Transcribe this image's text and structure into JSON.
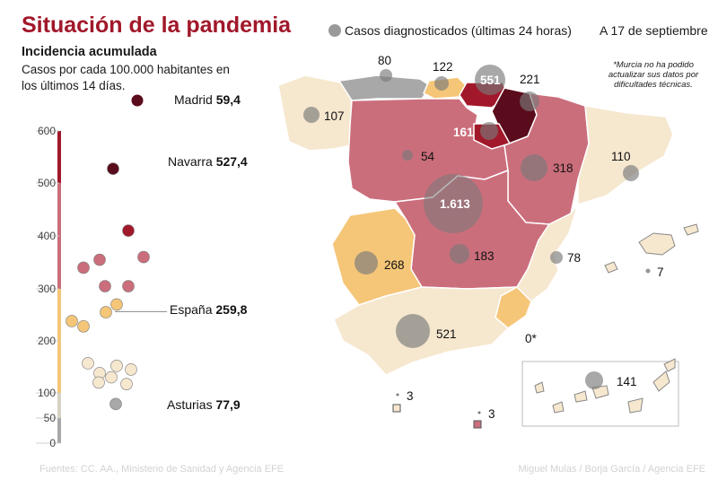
{
  "title": "Situación de la pandemia",
  "subtitle": "Incidencia acumulada",
  "description": "Casos por cada 100.000 habitantes en los últimos 14 días.",
  "legend": {
    "label": "Casos diagnosticados (últimas 24 horas)",
    "color": "#9a9a9a"
  },
  "date": "A 17 de septiembre",
  "note": "*Murcia no ha podido actualizar sus datos por dificultades técnicas.",
  "source": "Fuentes: CC. AA., Ministerio de Sanidad y Agencia EFE",
  "credit": "Miguel Mulas / Borja García / Agencia EFE",
  "colors": {
    "very_high": "#5a0c1c",
    "high": "#a1182a",
    "medium": "#cb6e7c",
    "low": "#f5c678",
    "very_low": "#f6e7cf",
    "minimal": "#a8a8a8"
  },
  "chart_data": {
    "type": "scatter",
    "ylim": [
      0,
      600
    ],
    "yticks": [
      0,
      50,
      100,
      200,
      300,
      400,
      500,
      600
    ],
    "color_bands": [
      {
        "from": 0,
        "to": 50,
        "color": "#a8a8a8"
      },
      {
        "from": 50,
        "to": 100,
        "color": "#d6d2c4"
      },
      {
        "from": 100,
        "to": 300,
        "color": "#f5c678"
      },
      {
        "from": 300,
        "to": 500,
        "color": "#cb6e7c"
      },
      {
        "from": 500,
        "to": 600,
        "color": "#a1182a"
      }
    ],
    "points": [
      {
        "value": 527.4,
        "color": "#5a0c1c"
      },
      {
        "value": 410,
        "color": "#a1182a"
      },
      {
        "value": 360,
        "color": "#cb6e7c"
      },
      {
        "value": 355,
        "color": "#cb6e7c"
      },
      {
        "value": 340,
        "color": "#cb6e7c"
      },
      {
        "value": 305,
        "color": "#cb6e7c"
      },
      {
        "value": 305,
        "color": "#cb6e7c"
      },
      {
        "value": 270,
        "color": "#f5c678"
      },
      {
        "value": 255,
        "color": "#f5c678"
      },
      {
        "value": 238,
        "color": "#f5c678"
      },
      {
        "value": 228,
        "color": "#f5c678"
      },
      {
        "value": 157,
        "color": "#f6e7cf"
      },
      {
        "value": 152,
        "color": "#f6e7cf"
      },
      {
        "value": 145,
        "color": "#f6e7cf"
      },
      {
        "value": 138,
        "color": "#f6e7cf"
      },
      {
        "value": 130,
        "color": "#f6e7cf"
      },
      {
        "value": 120,
        "color": "#f6e7cf"
      },
      {
        "value": 117,
        "color": "#f6e7cf"
      },
      {
        "value": 77.9,
        "color": "#a8a8a8"
      }
    ],
    "callouts": [
      {
        "name": "Madrid",
        "value": "59,4"
      },
      {
        "name": "Navarra",
        "value": "527,4"
      },
      {
        "name": "España",
        "value": "259,8"
      },
      {
        "name": "Asturias",
        "value": "77,9"
      }
    ]
  },
  "map_cases": {
    "galicia": "107",
    "asturias": "80",
    "cantabria": "122",
    "pais_vasco": "551",
    "navarra": "221",
    "la_rioja": "161",
    "castilla_leon": "54",
    "aragon": "318",
    "cataluna": "110",
    "madrid": "1.613",
    "castilla_la_mancha": "183",
    "extremadura": "268",
    "valencia": "78",
    "baleares": "7",
    "murcia": "0*",
    "andalucia": "521",
    "ceuta": "3",
    "melilla": "3",
    "canarias": "141"
  }
}
